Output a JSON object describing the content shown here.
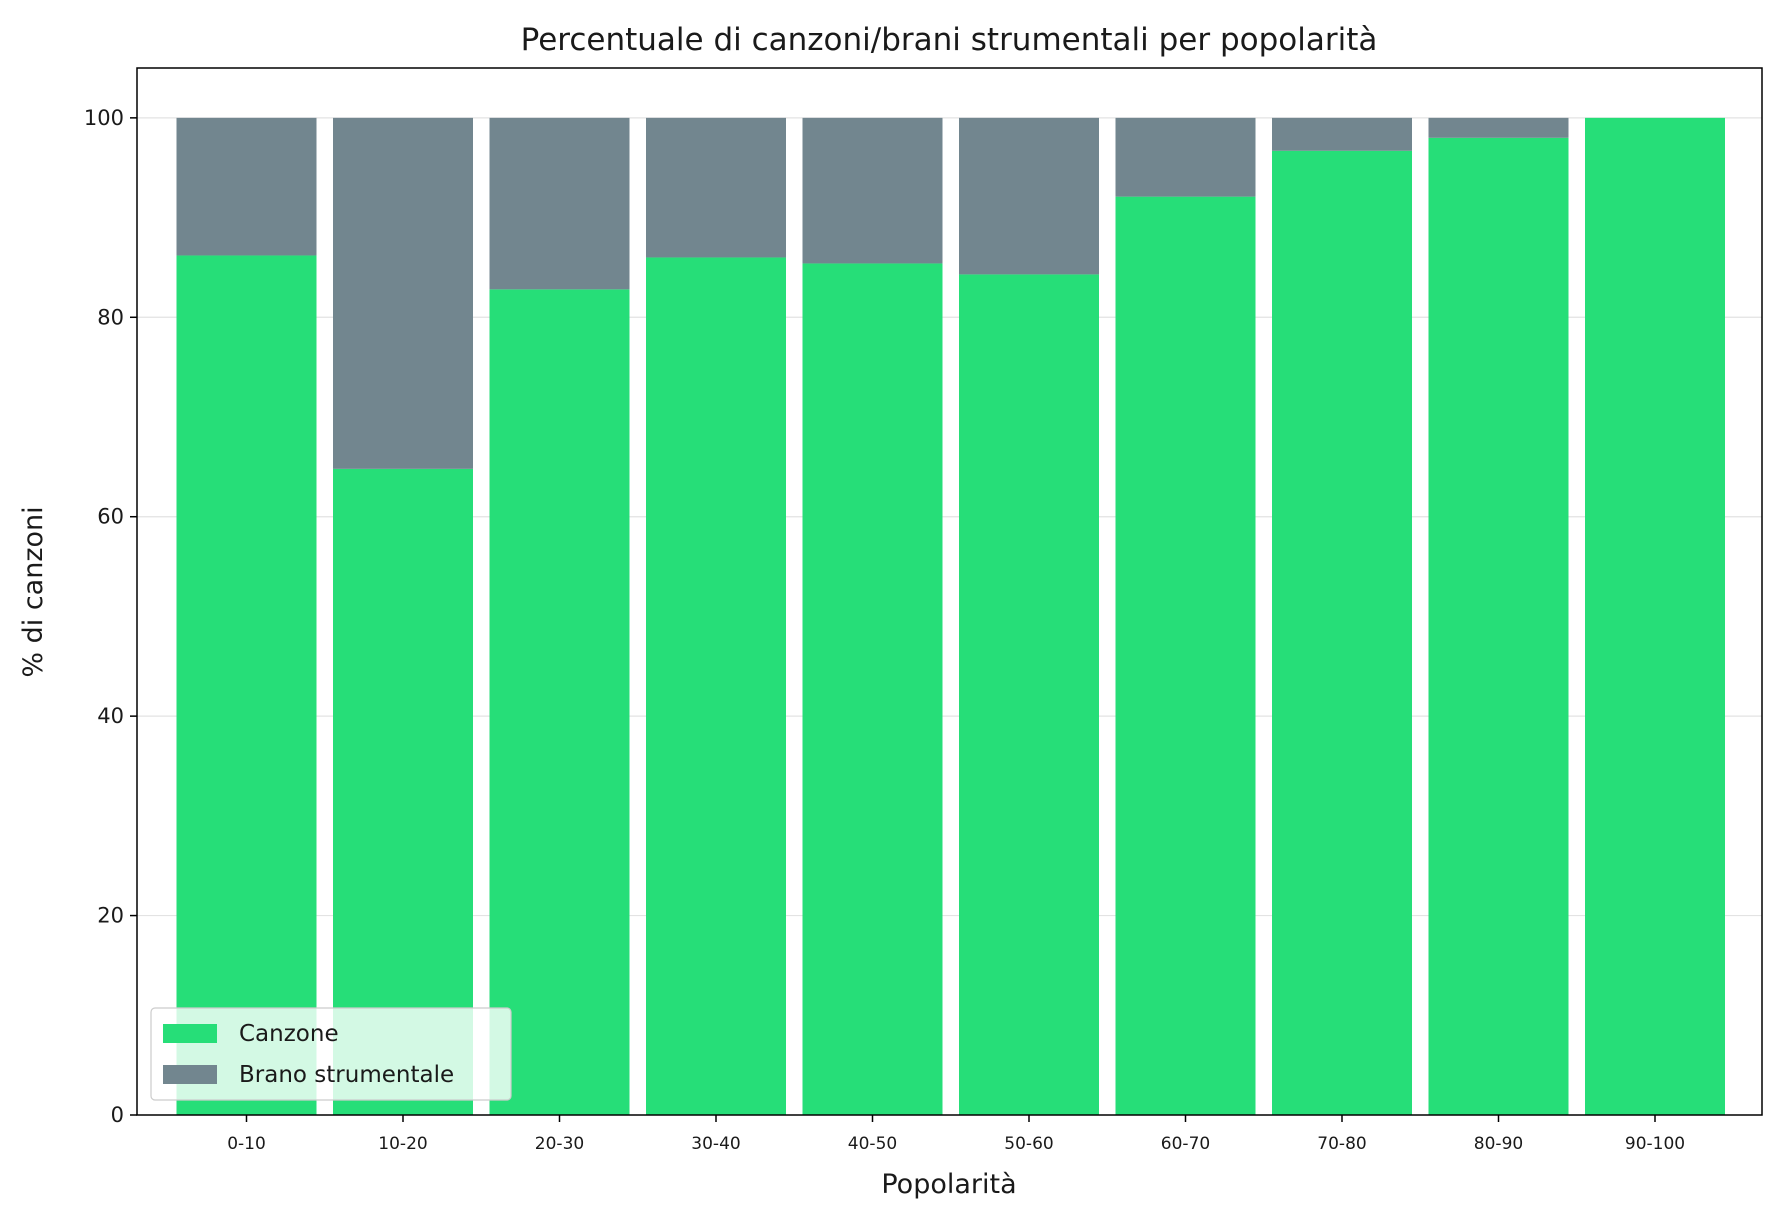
{
  "chart_data": {
    "type": "bar",
    "stacked": true,
    "title": "Percentuale di canzoni/brani strumentali per popolarità",
    "xlabel": "Popolarità",
    "ylabel": "% di canzoni",
    "categories": [
      "0-10",
      "10-20",
      "20-30",
      "30-40",
      "40-50",
      "50-60",
      "60-70",
      "70-80",
      "80-90",
      "90-100"
    ],
    "series": [
      {
        "name": "Canzone",
        "color": "#26de78",
        "values": [
          86.2,
          64.8,
          82.8,
          86.0,
          85.4,
          84.3,
          92.1,
          96.7,
          98.0,
          100.0
        ]
      },
      {
        "name": "Brano strumentale",
        "color": "#72868f",
        "values": [
          13.8,
          35.2,
          17.2,
          14.0,
          14.6,
          15.7,
          7.9,
          3.3,
          2.0,
          0.0
        ]
      }
    ],
    "ylim": [
      0,
      105
    ],
    "yticks": [
      0,
      20,
      40,
      60,
      80,
      100
    ],
    "grid": "horizontal",
    "legend": "lower-left"
  }
}
